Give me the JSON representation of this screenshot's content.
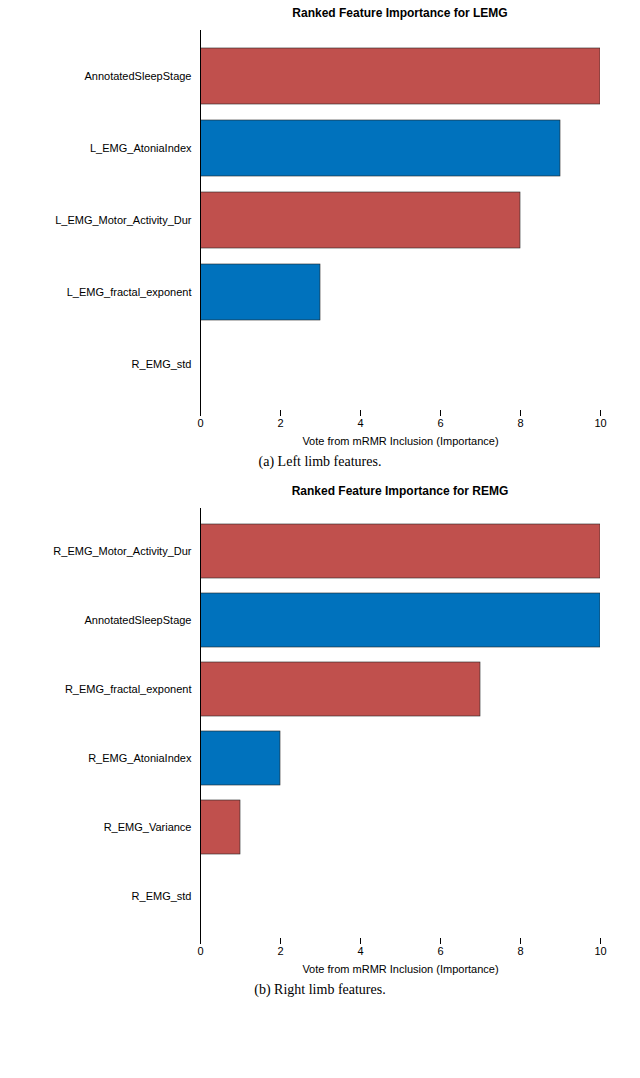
{
  "chart_data": [
    {
      "type": "bar",
      "orientation": "horizontal",
      "title": "Ranked Feature Importance for LEMG",
      "categories": [
        "AnnotatedSleepStage",
        "L_EMG_AtoniaIndex",
        "L_EMG_Motor_Activity_Dur",
        "L_EMG_fractal_exponent",
        "R_EMG_std"
      ],
      "values": [
        10,
        9,
        8,
        3,
        0
      ],
      "colors": [
        "#c0504d",
        "#0072bd",
        "#c0504d",
        "#0072bd",
        "#c0504d"
      ],
      "x_label": "Vote from mRMR Inclusion (Importance)",
      "xlim": [
        0,
        10
      ],
      "xticks": [
        0,
        2,
        4,
        6,
        8,
        10
      ],
      "caption": "(a) Left limb features."
    },
    {
      "type": "bar",
      "orientation": "horizontal",
      "title": "Ranked Feature Importance for REMG",
      "categories": [
        "R_EMG_Motor_Activity_Dur",
        "AnnotatedSleepStage",
        "R_EMG_fractal_exponent",
        "R_EMG_AtoniaIndex",
        "R_EMG_Variance",
        "R_EMG_std"
      ],
      "values": [
        10,
        10,
        7,
        2,
        1,
        0
      ],
      "colors": [
        "#c0504d",
        "#0072bd",
        "#c0504d",
        "#0072bd",
        "#c0504d",
        "#0072bd"
      ],
      "x_label": "Vote from mRMR Inclusion (Importance)",
      "xlim": [
        0,
        10
      ],
      "xticks": [
        0,
        2,
        4,
        6,
        8,
        10
      ],
      "caption": "(b) Right limb features."
    }
  ]
}
